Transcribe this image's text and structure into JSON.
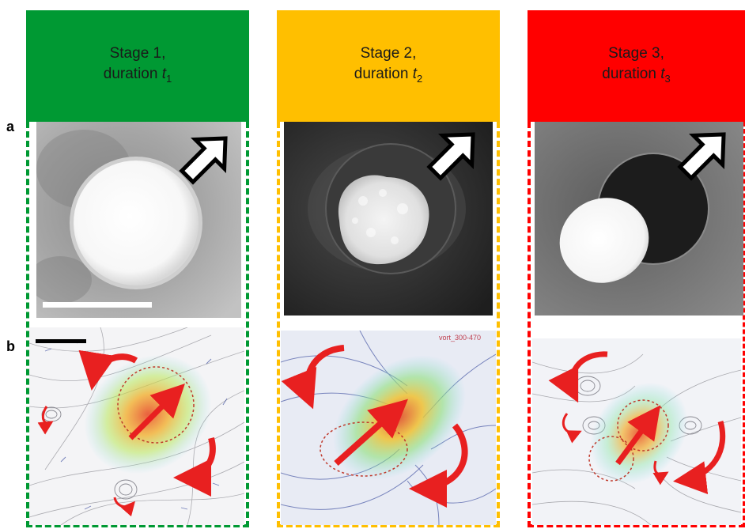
{
  "row_labels": {
    "a": "a",
    "b": "b"
  },
  "stages": [
    {
      "title_line1": "Stage 1,",
      "title_line2": "duration ",
      "t": "t",
      "sub": "1",
      "color": "#009933"
    },
    {
      "title_line1": "Stage 2,",
      "title_line2": "duration ",
      "t": "t",
      "sub": "2",
      "color": "#ffbf00"
    },
    {
      "title_line1": "Stage 3,",
      "title_line2": "duration ",
      "t": "t",
      "sub": "3",
      "color": "#ff0000"
    }
  ],
  "flow_watermark": "vort_300-470",
  "colors": {
    "arrow_red": "#e82020",
    "streamline_gray": "#9a9aa0",
    "vector_blue": "#1b2f8f",
    "heat_warm": "#f28a2a",
    "heat_cool": "#7fd8e8"
  }
}
